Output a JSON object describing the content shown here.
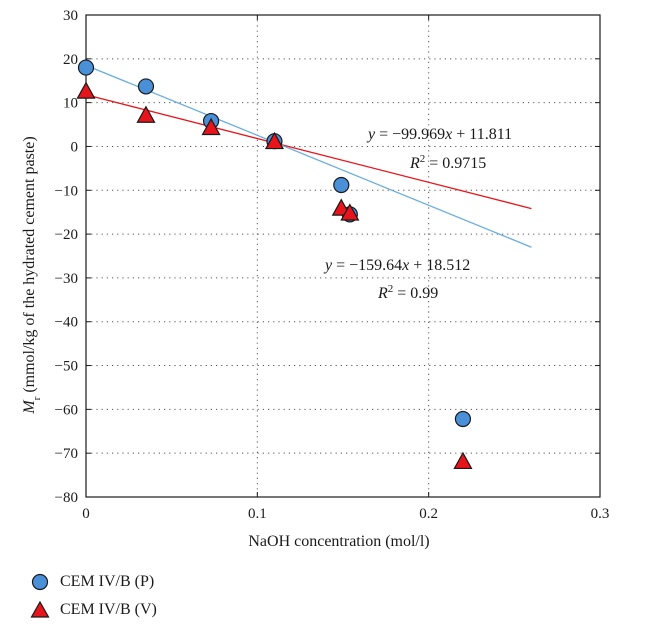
{
  "chart_data": {
    "type": "scatter",
    "xlabel": "NaOH concentration (mol/l)",
    "ylabel_main": "M",
    "ylabel_sub": "r",
    "ylabel_rest": " (mmol/kg of the hydrated cement paste)",
    "xlim": [
      0,
      0.3
    ],
    "ylim": [
      -80,
      30
    ],
    "x_ticks": [
      "0",
      "0.1",
      "0.2",
      "0.3"
    ],
    "y_ticks": [
      "30",
      "20",
      "10",
      "0",
      "−10",
      "−20",
      "−30",
      "−40",
      "−50",
      "−60",
      "−70",
      "−80"
    ],
    "grid": true,
    "legend_position": "bottom-left, below plot",
    "series": [
      {
        "name": "CEM IV/B (P)",
        "marker": "circle",
        "color": "#4a90d9",
        "points": [
          [
            0,
            18
          ],
          [
            0.035,
            13.7
          ],
          [
            0.073,
            5.8
          ],
          [
            0.11,
            1.2
          ],
          [
            0.149,
            -8.8
          ],
          [
            0.154,
            -15.5
          ],
          [
            0.22,
            -62.2
          ]
        ]
      },
      {
        "name": "CEM IV/B (V)",
        "marker": "triangle",
        "color": "#e8141b",
        "points": [
          [
            0,
            12.5
          ],
          [
            0.035,
            7
          ],
          [
            0.073,
            4.2
          ],
          [
            0.11,
            1
          ],
          [
            0.149,
            -14.2
          ],
          [
            0.154,
            -15.3
          ],
          [
            0.22,
            -72
          ]
        ]
      }
    ],
    "fits": [
      {
        "series": "CEM IV/B (V)",
        "color": "#e8141b",
        "slope": -99.969,
        "intercept": 11.811,
        "x_range": [
          0,
          0.26
        ],
        "equation_y": "y",
        "equation_rest": " = −99.969",
        "equation_x": "x",
        "equation_tail": " + 11.811",
        "r2_label": "R",
        "r2_exp": "2",
        "r2_value": " = 0.9715"
      },
      {
        "series": "CEM IV/B (P)",
        "color": "#6aaee0",
        "slope": -159.64,
        "intercept": 18.512,
        "x_range": [
          0,
          0.26
        ],
        "equation_y": "y",
        "equation_rest": " = −159.64",
        "equation_x": "x",
        "equation_tail": " + 18.512",
        "r2_label": "R",
        "r2_exp": "2",
        "r2_value": " = 0.99"
      }
    ]
  }
}
